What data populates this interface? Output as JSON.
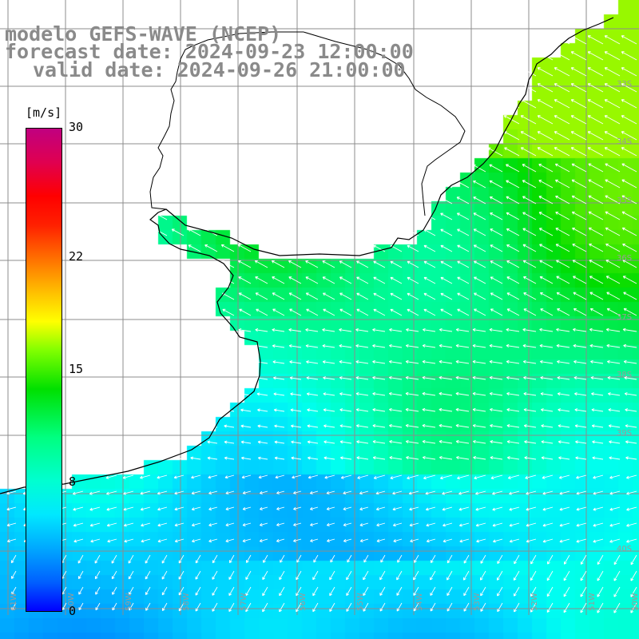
{
  "title": {
    "model": "modelo GEFS-WAVE (NCEP)",
    "forecast": "forecast date: 2024-09-23 12:00:00",
    "valid": "valid date: 2024-09-26 21:00:00"
  },
  "colorbar": {
    "unit": "[m/s]",
    "ticks": [
      {
        "value": 30,
        "label": "30"
      },
      {
        "value": 22,
        "label": "22"
      },
      {
        "value": 15,
        "label": "15"
      },
      {
        "value": 8,
        "label": "8"
      },
      {
        "value": 0,
        "label": "0"
      }
    ],
    "range": [
      0,
      30
    ],
    "colors": [
      "#0000ff",
      "#00a8ff",
      "#00ffd0",
      "#00e000",
      "#ffff00",
      "#ff7000",
      "#ff0000",
      "#c00080"
    ]
  },
  "map": {
    "variable": "wind speed and direction",
    "lon_range": [
      -61,
      -49
    ],
    "lat_range": [
      -41,
      -31
    ],
    "lat_labels": [
      "33S",
      "34S",
      "35S",
      "36S",
      "37S",
      "38S",
      "39S",
      "40S"
    ],
    "lon_labels": [
      "61W",
      "60W",
      "59W",
      "58W",
      "57W",
      "56W",
      "55W",
      "54W",
      "53W",
      "52W",
      "51W",
      "50W"
    ],
    "land_color": "#ffffff",
    "grid_color": "#8c8c8c",
    "wind_regions": [
      {
        "area": "north-east offshore",
        "speed_ms": 12,
        "direction": "north-west"
      },
      {
        "area": "central shelf",
        "speed_ms": 8.5,
        "direction": "west"
      },
      {
        "area": "south",
        "speed_ms": 4,
        "direction": "south-west"
      }
    ]
  }
}
